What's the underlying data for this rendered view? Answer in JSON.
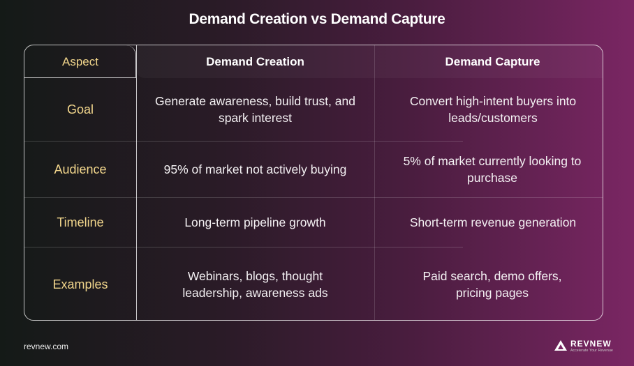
{
  "title": "Demand Creation vs Demand Capture",
  "table": {
    "headers": [
      "Aspect",
      "Demand Creation",
      "Demand Capture"
    ],
    "rows": [
      {
        "aspect": "Goal",
        "creation": "Generate awareness, build trust, and spark interest",
        "capture": "Convert high-intent buyers into leads/customers"
      },
      {
        "aspect": "Audience",
        "creation": "95% of market not actively buying",
        "capture": "5% of market currently looking to purchase"
      },
      {
        "aspect": "Timeline",
        "creation": "Long-term pipeline growth",
        "capture": "Short-term revenue generation"
      },
      {
        "aspect": "Examples",
        "creation": "Webinars, blogs, thought leadership, awareness ads",
        "capture": "Paid search, demo offers, pricing pages"
      }
    ]
  },
  "footer": {
    "url": "revnew.com",
    "brand": "REVNEW",
    "tagline": "Accelerate Your Revenue"
  },
  "colors": {
    "aspect_text": "#f2d68c",
    "background_left": "#141a17",
    "background_right": "#7a2663"
  },
  "icons": {
    "brand_logo": "revnew-mountain-icon"
  }
}
